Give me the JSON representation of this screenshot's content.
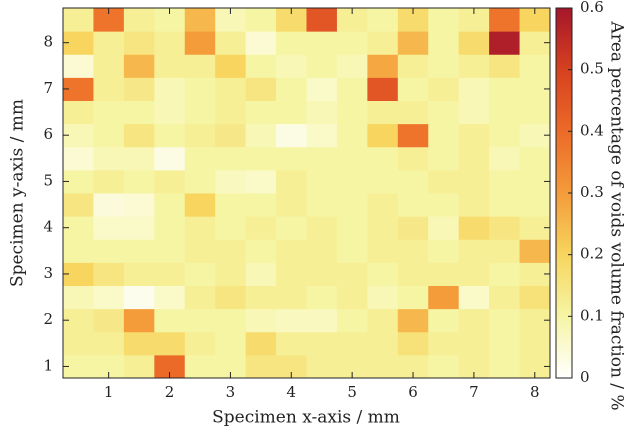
{
  "chart_data": {
    "type": "heatmap",
    "x_label": "Specimen x-axis / mm",
    "y_label": "Specimen y-axis / mm",
    "colorbar_label": "Area percentage of voids volume fraction / %",
    "x": [
      0.5,
      1.0,
      1.5,
      2.0,
      2.5,
      3.0,
      3.5,
      4.0,
      4.5,
      5.0,
      5.5,
      6.0,
      6.5,
      7.0,
      7.5,
      8.0
    ],
    "y": [
      1.0,
      1.5,
      2.0,
      2.5,
      3.0,
      3.5,
      4.0,
      4.5,
      5.0,
      5.5,
      6.0,
      6.5,
      7.0,
      7.5,
      8.0,
      8.5
    ],
    "values": [
      [
        0.1,
        0.1,
        0.12,
        0.4,
        0.1,
        0.1,
        0.15,
        0.15,
        0.12,
        0.12,
        0.12,
        0.12,
        0.1,
        0.12,
        0.1,
        0.12
      ],
      [
        0.12,
        0.12,
        0.18,
        0.18,
        0.12,
        0.1,
        0.18,
        0.12,
        0.12,
        0.12,
        0.12,
        0.16,
        0.12,
        0.12,
        0.1,
        0.12
      ],
      [
        0.12,
        0.14,
        0.3,
        0.1,
        0.1,
        0.1,
        0.08,
        0.07,
        0.07,
        0.1,
        0.12,
        0.25,
        0.1,
        0.12,
        0.1,
        0.12
      ],
      [
        0.08,
        0.06,
        0.02,
        0.06,
        0.12,
        0.15,
        0.12,
        0.12,
        0.1,
        0.12,
        0.08,
        0.1,
        0.3,
        0.06,
        0.12,
        0.16
      ],
      [
        0.2,
        0.15,
        0.12,
        0.12,
        0.1,
        0.12,
        0.08,
        0.12,
        0.12,
        0.12,
        0.1,
        0.12,
        0.12,
        0.12,
        0.1,
        0.12
      ],
      [
        0.1,
        0.1,
        0.1,
        0.1,
        0.12,
        0.12,
        0.1,
        0.12,
        0.12,
        0.1,
        0.12,
        0.12,
        0.1,
        0.12,
        0.12,
        0.25
      ],
      [
        0.1,
        0.06,
        0.06,
        0.1,
        0.12,
        0.1,
        0.12,
        0.1,
        0.12,
        0.1,
        0.12,
        0.14,
        0.08,
        0.18,
        0.15,
        0.12
      ],
      [
        0.15,
        0.04,
        0.05,
        0.1,
        0.2,
        0.1,
        0.1,
        0.12,
        0.1,
        0.1,
        0.12,
        0.1,
        0.1,
        0.12,
        0.1,
        0.1
      ],
      [
        0.1,
        0.12,
        0.1,
        0.12,
        0.1,
        0.07,
        0.06,
        0.12,
        0.1,
        0.1,
        0.1,
        0.1,
        0.12,
        0.12,
        0.1,
        0.1
      ],
      [
        0.05,
        0.08,
        0.08,
        0.03,
        0.1,
        0.1,
        0.1,
        0.1,
        0.1,
        0.1,
        0.1,
        0.12,
        0.1,
        0.12,
        0.08,
        0.1
      ],
      [
        0.08,
        0.1,
        0.15,
        0.1,
        0.12,
        0.14,
        0.08,
        0.03,
        0.06,
        0.1,
        0.2,
        0.38,
        0.1,
        0.12,
        0.1,
        0.08
      ],
      [
        0.12,
        0.1,
        0.1,
        0.08,
        0.1,
        0.12,
        0.1,
        0.1,
        0.08,
        0.1,
        0.12,
        0.12,
        0.1,
        0.08,
        0.1,
        0.1
      ],
      [
        0.38,
        0.12,
        0.14,
        0.08,
        0.1,
        0.12,
        0.15,
        0.1,
        0.06,
        0.1,
        0.45,
        0.1,
        0.12,
        0.08,
        0.1,
        0.1
      ],
      [
        0.05,
        0.12,
        0.25,
        0.12,
        0.12,
        0.2,
        0.1,
        0.08,
        0.1,
        0.08,
        0.28,
        0.12,
        0.1,
        0.12,
        0.15,
        0.1
      ],
      [
        0.2,
        0.12,
        0.15,
        0.12,
        0.3,
        0.12,
        0.05,
        0.1,
        0.1,
        0.1,
        0.12,
        0.25,
        0.1,
        0.18,
        0.58,
        0.12
      ],
      [
        0.12,
        0.38,
        0.12,
        0.1,
        0.25,
        0.08,
        0.1,
        0.18,
        0.45,
        0.12,
        0.1,
        0.18,
        0.1,
        0.12,
        0.38,
        0.2
      ]
    ],
    "xlim": [
      0.25,
      8.25
    ],
    "ylim": [
      0.75,
      8.75
    ],
    "xticks": [
      1,
      2,
      3,
      4,
      5,
      6,
      7,
      8
    ],
    "yticks": [
      1,
      2,
      3,
      4,
      5,
      6,
      7,
      8
    ],
    "zlim": [
      0,
      0.6
    ],
    "zticks": [
      0,
      0.1,
      0.2,
      0.3,
      0.4,
      0.5,
      0.6
    ],
    "colorscale": [
      [
        0,
        "#ffffff"
      ],
      [
        0.1,
        "#f6f5a4"
      ],
      [
        0.2,
        "#f7d55e"
      ],
      [
        0.3,
        "#f49b3a"
      ],
      [
        0.4,
        "#ec6a28"
      ],
      [
        0.5,
        "#d6411f"
      ],
      [
        0.6,
        "#a5162b"
      ]
    ]
  }
}
